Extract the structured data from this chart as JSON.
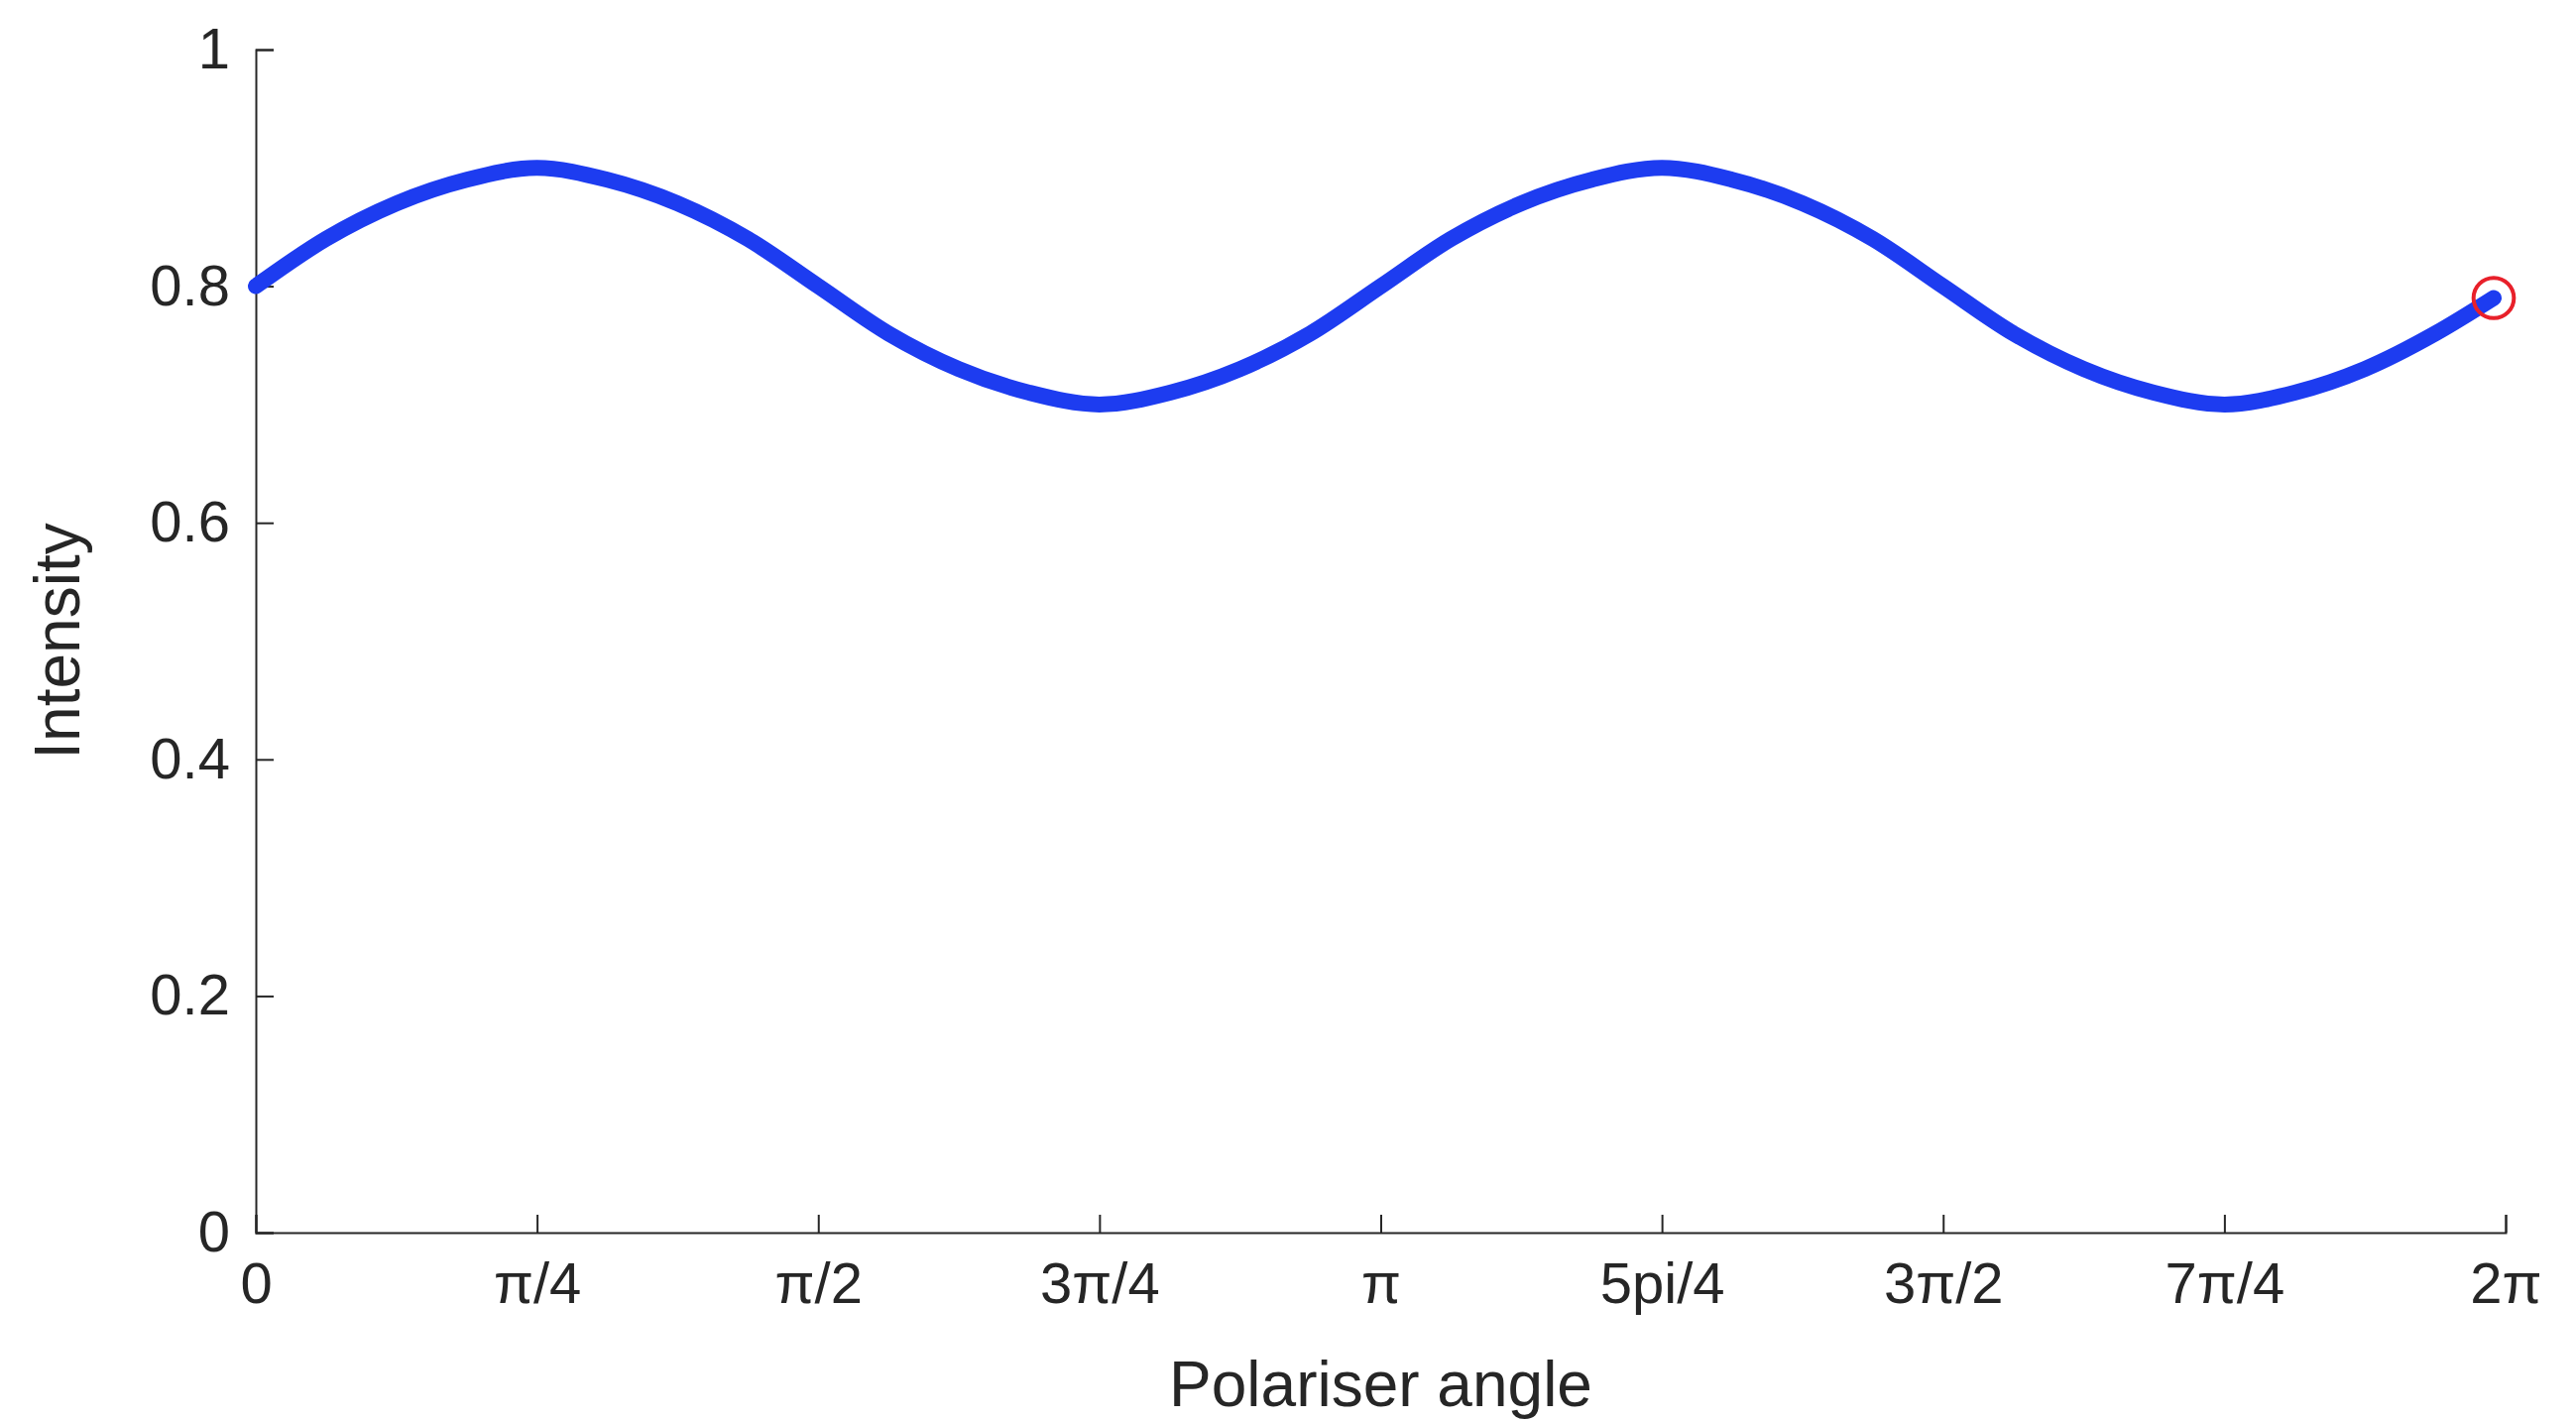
{
  "chart_data": {
    "type": "line",
    "xlabel": "Polariser angle",
    "ylabel": "Intensity",
    "xlim": [
      0,
      6.2832
    ],
    "ylim": [
      0,
      1
    ],
    "xticks": [
      0,
      {
        "value": 0.7854,
        "label": "π/4"
      },
      {
        "value": 1.5708,
        "label": "π/2"
      },
      {
        "value": 2.3562,
        "label": "3π/4"
      },
      {
        "value": 3.1416,
        "label": "π"
      },
      {
        "value": 3.927,
        "label": "5pi/4"
      },
      {
        "value": 4.7124,
        "label": "3π/2"
      },
      {
        "value": 5.4978,
        "label": "7π/4"
      },
      {
        "value": 6.2832,
        "label": "2π"
      }
    ],
    "yticks": [
      0,
      0.2,
      0.4,
      0.6,
      0.8,
      1
    ],
    "grid": false,
    "series": [
      {
        "color": "#1d3cf0",
        "marker": "none",
        "line_style": "solid",
        "x": [
          0,
          0.196,
          0.393,
          0.589,
          0.785,
          0.982,
          1.178,
          1.374,
          1.571,
          1.767,
          1.963,
          2.16,
          2.356,
          2.553,
          2.749,
          2.945,
          3.142,
          3.338,
          3.534,
          3.731,
          3.927,
          4.123,
          4.32,
          4.516,
          4.712,
          4.909,
          5.105,
          5.301,
          5.498,
          5.694,
          5.89,
          6.087,
          6.25
        ],
        "values": [
          0.8,
          0.84,
          0.87,
          0.89,
          0.9,
          0.89,
          0.87,
          0.84,
          0.8,
          0.76,
          0.73,
          0.71,
          0.7,
          0.71,
          0.73,
          0.76,
          0.8,
          0.84,
          0.87,
          0.89,
          0.9,
          0.89,
          0.87,
          0.84,
          0.8,
          0.76,
          0.73,
          0.71,
          0.7,
          0.71,
          0.73,
          0.76,
          0.79
        ]
      },
      {
        "type": "scatter",
        "color": "#e8202a",
        "marker": "circle",
        "x": [
          6.25
        ],
        "values": [
          0.79
        ]
      }
    ]
  }
}
